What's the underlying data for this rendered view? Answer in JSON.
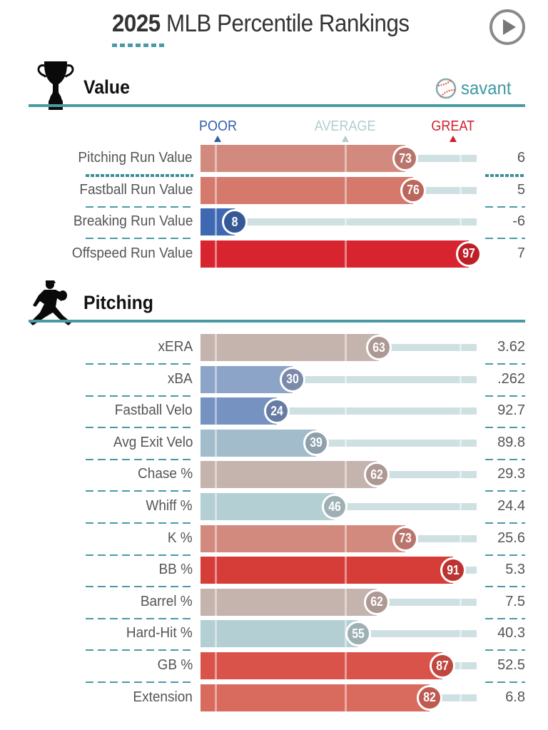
{
  "header": {
    "year": "2025",
    "title_rest": "MLB Percentile Rankings",
    "play_button_icon": "play-icon"
  },
  "brand": {
    "name": "savant",
    "icon": "baseball-icon",
    "accent": "#4a9aa5"
  },
  "legend": {
    "poor": "POOR",
    "average": "AVERAGE",
    "great": "GREAT",
    "poor_color": "#2f5ea8",
    "average_color": "#b4cdd1",
    "great_color": "#d0202f"
  },
  "sections": [
    {
      "title": "Value",
      "icon": "trophy-icon"
    },
    {
      "title": "Pitching",
      "icon": "pitcher-icon"
    }
  ],
  "chart_data": {
    "type": "bar",
    "title": "2025 MLB Percentile Rankings",
    "xlabel": "Percentile",
    "xlim": [
      0,
      100
    ],
    "orientation": "horizontal",
    "groups": [
      {
        "name": "Value",
        "categories": [
          "Pitching Run Value",
          "Fastball Run Value",
          "Breaking Run Value",
          "Offspeed Run Value"
        ],
        "percentiles": [
          73,
          76,
          8,
          97
        ],
        "stat_values": [
          "6",
          "5",
          "-6",
          "7"
        ],
        "colors": [
          "#d28a7f",
          "#d4796c",
          "#3f68b2",
          "#d8242e"
        ]
      },
      {
        "name": "Pitching",
        "categories": [
          "xERA",
          "xBA",
          "Fastball Velo",
          "Avg Exit Velo",
          "Chase %",
          "Whiff %",
          "K %",
          "BB %",
          "Barrel %",
          "Hard-Hit %",
          "GB %",
          "Extension"
        ],
        "percentiles": [
          63,
          30,
          24,
          39,
          62,
          46,
          73,
          91,
          62,
          55,
          87,
          82
        ],
        "stat_values": [
          "3.62",
          ".262",
          "92.7",
          "89.8",
          "29.3",
          "24.4",
          "25.6",
          "5.3",
          "7.5",
          "40.3",
          "52.5",
          "6.8"
        ],
        "colors": [
          "#c5b3ae",
          "#8ba4c7",
          "#7592c1",
          "#a3bccb",
          "#c5b3ae",
          "#b3cfd4",
          "#d28a7f",
          "#d63c38",
          "#c5b3ae",
          "#b3cfd4",
          "#d9534a",
          "#d96a5e"
        ]
      }
    ]
  }
}
